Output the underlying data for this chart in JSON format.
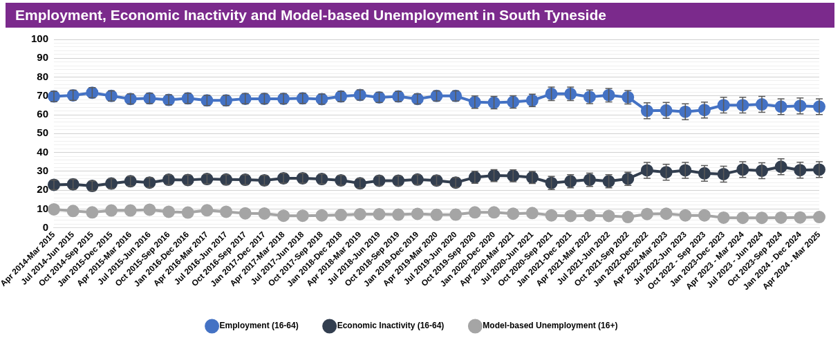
{
  "chart_data": {
    "type": "line",
    "title": "Employment, Economic Inactivity and Model-based Unemployment in South Tyneside",
    "categories": [
      "Apr 2014-Mar 2015",
      "Jul 2014-Jun 2015",
      "Oct 2014-Sep 2015",
      "Jan 2015-Dec 2015",
      "Apr 2015-Mar 2016",
      "Jul 2015-Jun 2016",
      "Oct 2015-Sep 2016",
      "Jan 2016-Dec 2016",
      "Apr 2016-Mar 2017",
      "Jul 2016-Jun 2017",
      "Oct 2016-Sep 2017",
      "Jan 2017-Dec 2017",
      "Apr 2017-Mar 2018",
      "Jul 2017-Jun 2018",
      "Oct 2017-Sep 2018",
      "Jan 2018-Dec 2018",
      "Apr 2018-Mar 2019",
      "Jul 2018-Jun 2019",
      "Oct 2018-Sep 2019",
      "Jan 2019-Dec 2019",
      "Apr 2019-Mar 2020",
      "Jul 2019-Jun 2020",
      "Oct 2019-Sep 2020",
      "Jan 2020-Dec 2020",
      "Apr 2020-Mar 2021",
      "Jul 2020-Jun 2021",
      "Oct 2020-Sep 2021",
      "Jan 2021-Dec 2021",
      "Apr 2021-Mar 2022",
      "Jul 2021-Jun 2022",
      "Oct 2021-Sep 2022",
      "Jan 2022-Dec 2022",
      "Apr 2022-Mar 2023",
      "Jul 2022-Jun 2023",
      "Oct 2022 - Sep 2023",
      "Jan 2023-Dec 2023",
      "Apr 2023 - Mar 2024",
      "Jul 2023 - Jun 2024",
      "Oct 2023-Sep 2024",
      "Jan 2024 - Dec 2024",
      "Apr 2024 - Mar 2025"
    ],
    "series": [
      {
        "name": "Employment (16-64)",
        "color": "#4472c4",
        "values": [
          69.7,
          70.3,
          71.7,
          70.0,
          68.4,
          68.7,
          67.9,
          68.7,
          67.6,
          67.6,
          68.5,
          68.5,
          68.5,
          68.7,
          68.3,
          69.7,
          70.5,
          69.2,
          69.7,
          68.4,
          70.0,
          70.0,
          66.7,
          66.4,
          66.8,
          67.6,
          71.1,
          71.1,
          69.5,
          70.4,
          69.3,
          62.1,
          62.3,
          61.6,
          62.5,
          65.1,
          65.1,
          65.5,
          64.3,
          64.7,
          64.3
        ],
        "errors": [
          2.7,
          2.7,
          2.7,
          2.7,
          2.7,
          2.7,
          2.7,
          2.7,
          2.7,
          2.7,
          2.7,
          2.7,
          2.7,
          2.7,
          2.7,
          2.7,
          2.7,
          2.7,
          2.7,
          2.7,
          2.7,
          2.7,
          3.3,
          3.3,
          3.3,
          3.3,
          3.6,
          3.6,
          3.6,
          3.6,
          3.6,
          4.2,
          4.2,
          4.2,
          4.2,
          4.2,
          4.2,
          4.2,
          4.2,
          4.2,
          4.2
        ]
      },
      {
        "name": "Economic Inactivity (16-64)",
        "color": "#323e4f",
        "values": [
          22.8,
          23.1,
          22.2,
          23.5,
          24.7,
          24.0,
          25.5,
          25.4,
          25.9,
          25.6,
          25.5,
          25.2,
          26.3,
          26.3,
          25.9,
          25.2,
          23.6,
          25.0,
          25.0,
          25.6,
          25.1,
          24.0,
          26.8,
          27.7,
          27.6,
          26.7,
          23.8,
          24.7,
          25.5,
          24.7,
          26.0,
          30.5,
          29.5,
          30.5,
          28.9,
          28.5,
          30.9,
          30.3,
          32.4,
          30.6,
          30.9
        ],
        "errors": [
          2.6,
          2.6,
          2.6,
          2.6,
          2.6,
          2.6,
          2.6,
          2.6,
          2.6,
          2.6,
          2.6,
          2.6,
          2.6,
          2.6,
          2.6,
          2.6,
          2.6,
          2.6,
          2.6,
          2.6,
          2.6,
          2.6,
          3.2,
          3.2,
          3.2,
          3.2,
          3.5,
          3.5,
          3.5,
          3.5,
          3.5,
          4.2,
          4.2,
          4.2,
          4.2,
          4.2,
          4.2,
          4.2,
          4.2,
          4.2,
          4.2
        ]
      },
      {
        "name": "Model-based Unemployment (16+)",
        "color": "#a5a5a5",
        "values": [
          9.8,
          8.9,
          8.2,
          9.2,
          9.2,
          9.6,
          8.5,
          8.1,
          9.3,
          8.5,
          7.7,
          7.6,
          6.4,
          6.4,
          6.6,
          6.8,
          7.2,
          7.2,
          7.0,
          7.4,
          6.9,
          7.0,
          8.2,
          8.2,
          7.5,
          7.8,
          6.6,
          6.3,
          6.6,
          6.3,
          5.7,
          7.3,
          7.5,
          6.6,
          6.6,
          5.4,
          5.3,
          5.3,
          5.4,
          5.5,
          5.7
        ]
      }
    ],
    "ylim": [
      0,
      100
    ],
    "yticks": [
      0,
      {
        "value": 2,
        "label": null
      },
      {
        "value": 4,
        "label": null
      },
      {
        "value": 6,
        "label": null
      },
      {
        "value": 8,
        "label": null
      },
      10,
      {
        "value": 12,
        "label": null
      },
      {
        "value": 14,
        "label": null
      },
      {
        "value": 16,
        "label": null
      },
      {
        "value": 18,
        "label": null
      },
      20,
      {
        "value": 22,
        "label": null
      },
      {
        "value": 24,
        "label": null
      },
      {
        "value": 26,
        "label": null
      },
      {
        "value": 28,
        "label": null
      },
      30,
      {
        "value": 32,
        "label": null
      },
      {
        "value": 34,
        "label": null
      },
      {
        "value": 36,
        "label": null
      },
      {
        "value": 38,
        "label": null
      },
      40,
      {
        "value": 42,
        "label": null
      },
      {
        "value": 44,
        "label": null
      },
      {
        "value": 46,
        "label": null
      },
      {
        "value": 48,
        "label": null
      },
      50,
      {
        "value": 52,
        "label": null
      },
      {
        "value": 54,
        "label": null
      },
      {
        "value": 56,
        "label": null
      },
      {
        "value": 58,
        "label": null
      },
      60,
      {
        "value": 62,
        "label": null
      },
      {
        "value": 64,
        "label": null
      },
      {
        "value": 66,
        "label": null
      },
      {
        "value": 68,
        "label": null
      },
      70,
      {
        "value": 72,
        "label": null
      },
      {
        "value": 74,
        "label": null
      },
      {
        "value": 76,
        "label": null
      },
      {
        "value": 78,
        "label": null
      },
      80,
      {
        "value": 82,
        "label": null
      },
      {
        "value": 84,
        "label": null
      },
      {
        "value": 86,
        "label": null
      },
      {
        "value": 88,
        "label": null
      },
      90,
      {
        "value": 92,
        "label": null
      },
      {
        "value": 94,
        "label": null
      },
      {
        "value": 96,
        "label": null
      },
      {
        "value": 98,
        "label": null
      },
      100
    ],
    "grid": "y",
    "legend": "bottom",
    "marker": "circle",
    "line_style": "solid"
  }
}
